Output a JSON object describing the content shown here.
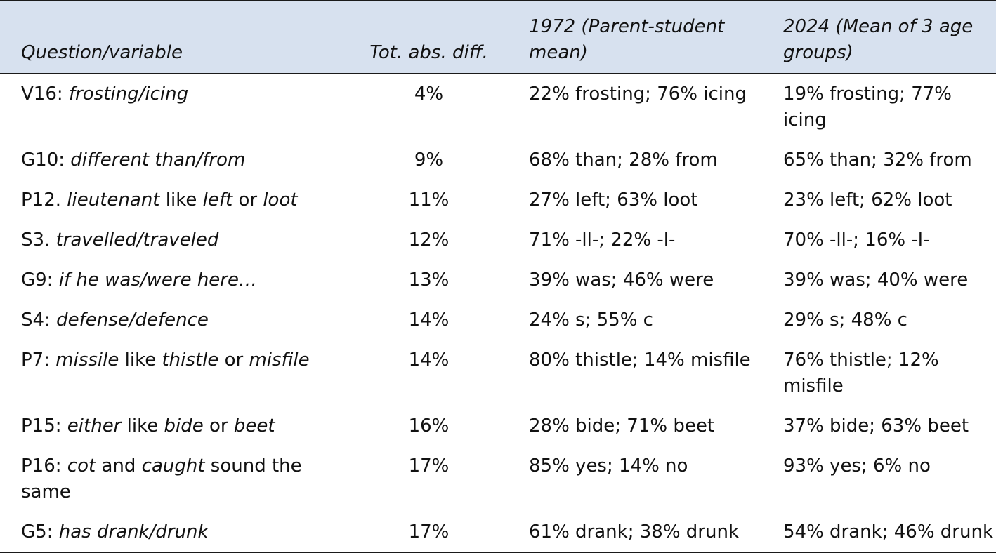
{
  "headers": {
    "question": "Question/variable",
    "tot_diff": "Tot. abs. diff.",
    "y1972": "1972 (Parent-student mean)",
    "y2024": "2024 (Mean of 3 age groups)"
  },
  "rows": [
    {
      "id": "V16",
      "sep": ": ",
      "parts": [
        [
          "frosting/icing",
          true
        ]
      ],
      "diff": "4%",
      "v1972": "22% frosting; 76% icing",
      "v2024": "19% frosting; 77% icing"
    },
    {
      "id": "G10",
      "sep": ": ",
      "parts": [
        [
          "different than/from",
          true
        ]
      ],
      "diff": "9%",
      "v1972": "68% than; 28% from",
      "v2024": "65% than; 32% from"
    },
    {
      "id": "P12",
      "sep": ". ",
      "parts": [
        [
          "lieutenant",
          true
        ],
        [
          " like ",
          false
        ],
        [
          "left",
          true
        ],
        [
          " or ",
          false
        ],
        [
          "loot",
          true
        ]
      ],
      "diff": "11%",
      "v1972": "27% left; 63% loot",
      "v2024": "23% left; 62% loot"
    },
    {
      "id": "S3",
      "sep": ". ",
      "parts": [
        [
          "travelled/traveled",
          true
        ]
      ],
      "diff": "12%",
      "v1972": "71% -ll-; 22% -l-",
      "v2024": "70% -ll-; 16% -l-"
    },
    {
      "id": "G9",
      "sep": ": ",
      "parts": [
        [
          "if he was/were here…",
          true
        ]
      ],
      "diff": "13%",
      "v1972": "39% was; 46% were",
      "v2024": "39% was; 40% were"
    },
    {
      "id": "S4",
      "sep": ": ",
      "parts": [
        [
          "defense/defence",
          true
        ]
      ],
      "diff": "14%",
      "v1972": "24% s; 55% c",
      "v2024": "29% s; 48% c"
    },
    {
      "id": "P7",
      "sep": ": ",
      "parts": [
        [
          "missile",
          true
        ],
        [
          " like ",
          false
        ],
        [
          "thistle",
          true
        ],
        [
          " or ",
          false
        ],
        [
          "misfile",
          true
        ]
      ],
      "diff": "14%",
      "v1972": "80% thistle; 14% misfile",
      "v2024": "76% thistle; 12% misfile"
    },
    {
      "id": "P15",
      "sep": ": ",
      "parts": [
        [
          "either",
          true
        ],
        [
          " like ",
          false
        ],
        [
          "bide",
          true
        ],
        [
          " or ",
          false
        ],
        [
          "beet",
          true
        ]
      ],
      "diff": "16%",
      "v1972": "28% bide; 71% beet",
      "v2024": "37% bide; 63% beet"
    },
    {
      "id": "P16",
      "sep": ": ",
      "parts": [
        [
          "cot",
          true
        ],
        [
          " and ",
          false
        ],
        [
          "caught",
          true
        ],
        [
          " sound the same",
          false
        ]
      ],
      "diff": "17%",
      "v1972": "85% yes; 14% no",
      "v2024": "93% yes; 6% no"
    },
    {
      "id": "G5",
      "sep": ": ",
      "parts": [
        [
          "has drank/drunk",
          true
        ]
      ],
      "diff": "17%",
      "v1972": "61% drank; 38% drunk",
      "v2024": "54% drank; 46% drunk"
    }
  ]
}
